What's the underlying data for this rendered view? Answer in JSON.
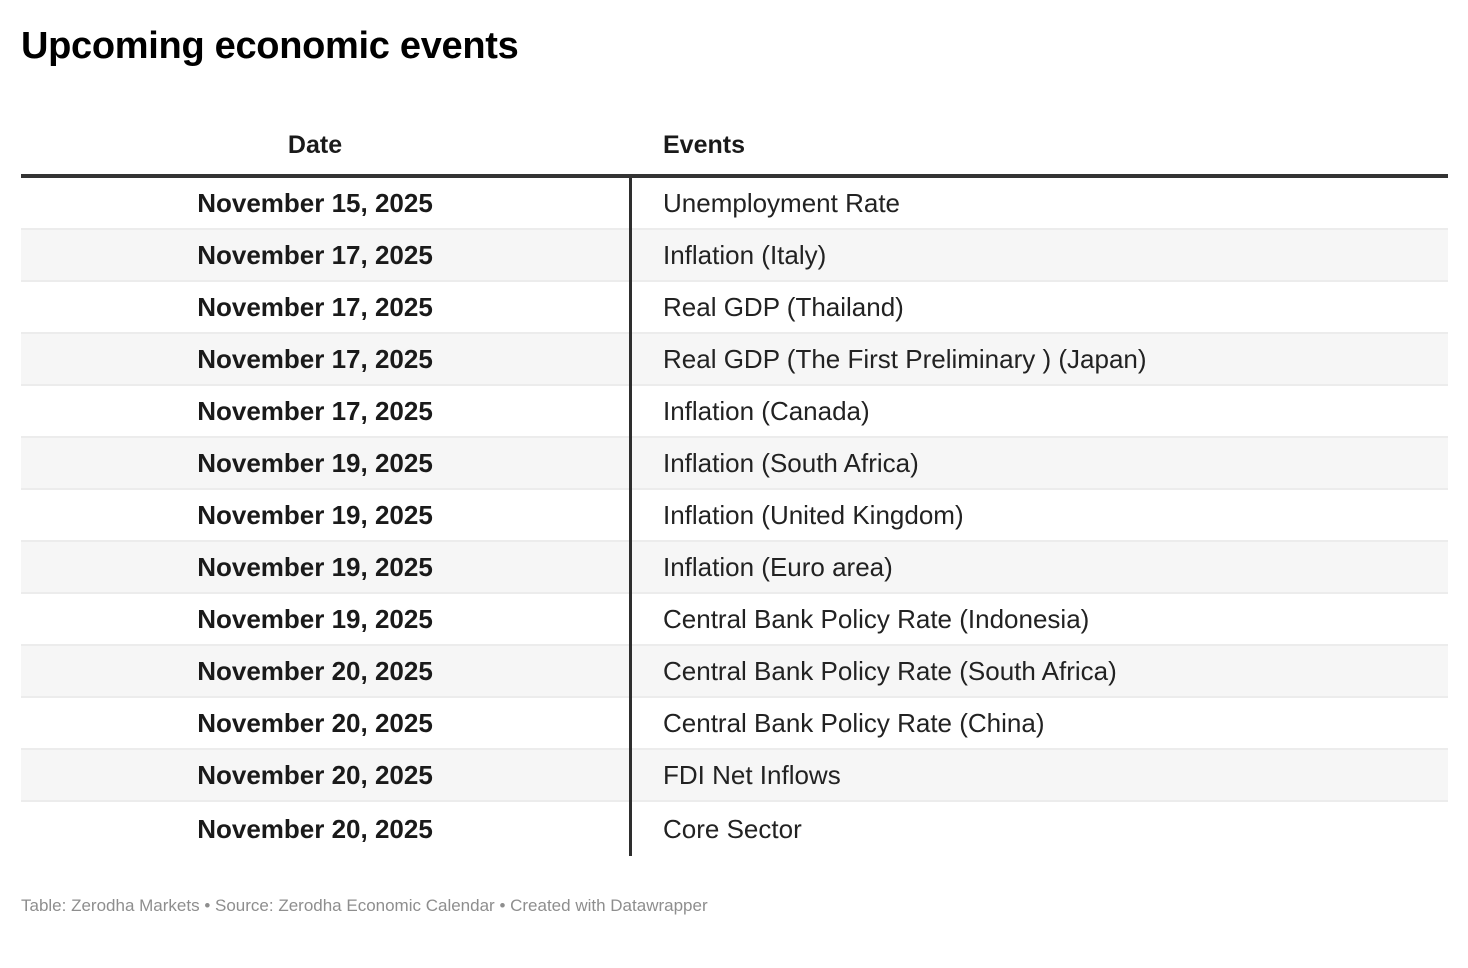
{
  "title": "Upcoming economic events",
  "chart_data": {
    "type": "table",
    "title": "Upcoming economic events",
    "columns": [
      "Date",
      "Events"
    ],
    "rows": [
      [
        "November 15, 2025",
        "Unemployment Rate"
      ],
      [
        "November 17, 2025",
        "Inflation (Italy)"
      ],
      [
        "November 17, 2025",
        "Real GDP (Thailand)"
      ],
      [
        "November 17, 2025",
        "Real GDP (The First Preliminary ) (Japan)"
      ],
      [
        "November 17, 2025",
        "Inflation (Canada)"
      ],
      [
        "November 19, 2025",
        "Inflation (South Africa)"
      ],
      [
        "November 19, 2025",
        "Inflation (United Kingdom)"
      ],
      [
        "November 19, 2025",
        "Inflation (Euro area)"
      ],
      [
        "November 19, 2025",
        "Central Bank Policy Rate (Indonesia)"
      ],
      [
        "November 20, 2025",
        "Central Bank Policy Rate (South Africa)"
      ],
      [
        "November 20, 2025",
        "Central Bank Policy Rate (China)"
      ],
      [
        "November 20, 2025",
        "FDI Net Inflows"
      ],
      [
        "November 20, 2025",
        "Core Sector"
      ]
    ],
    "layout_hints": {
      "date_column_align": "center",
      "events_column_align": "left",
      "striped_rows": true
    }
  },
  "footer": {
    "part1": "Table: ",
    "publisher": "Zerodha Markets",
    "part2": " • Source: ",
    "source": "Zerodha Economic Calendar",
    "part3": " • Created with ",
    "tool": "Datawrapper"
  },
  "colors": {
    "header_border": "#333333",
    "column_divider": "#2e2e2e",
    "row_stripe": "#f6f6f6",
    "row_separator": "#ececec",
    "text": "#1a1a1a",
    "footer_text": "#8e8e8e",
    "background": "#ffffff"
  }
}
